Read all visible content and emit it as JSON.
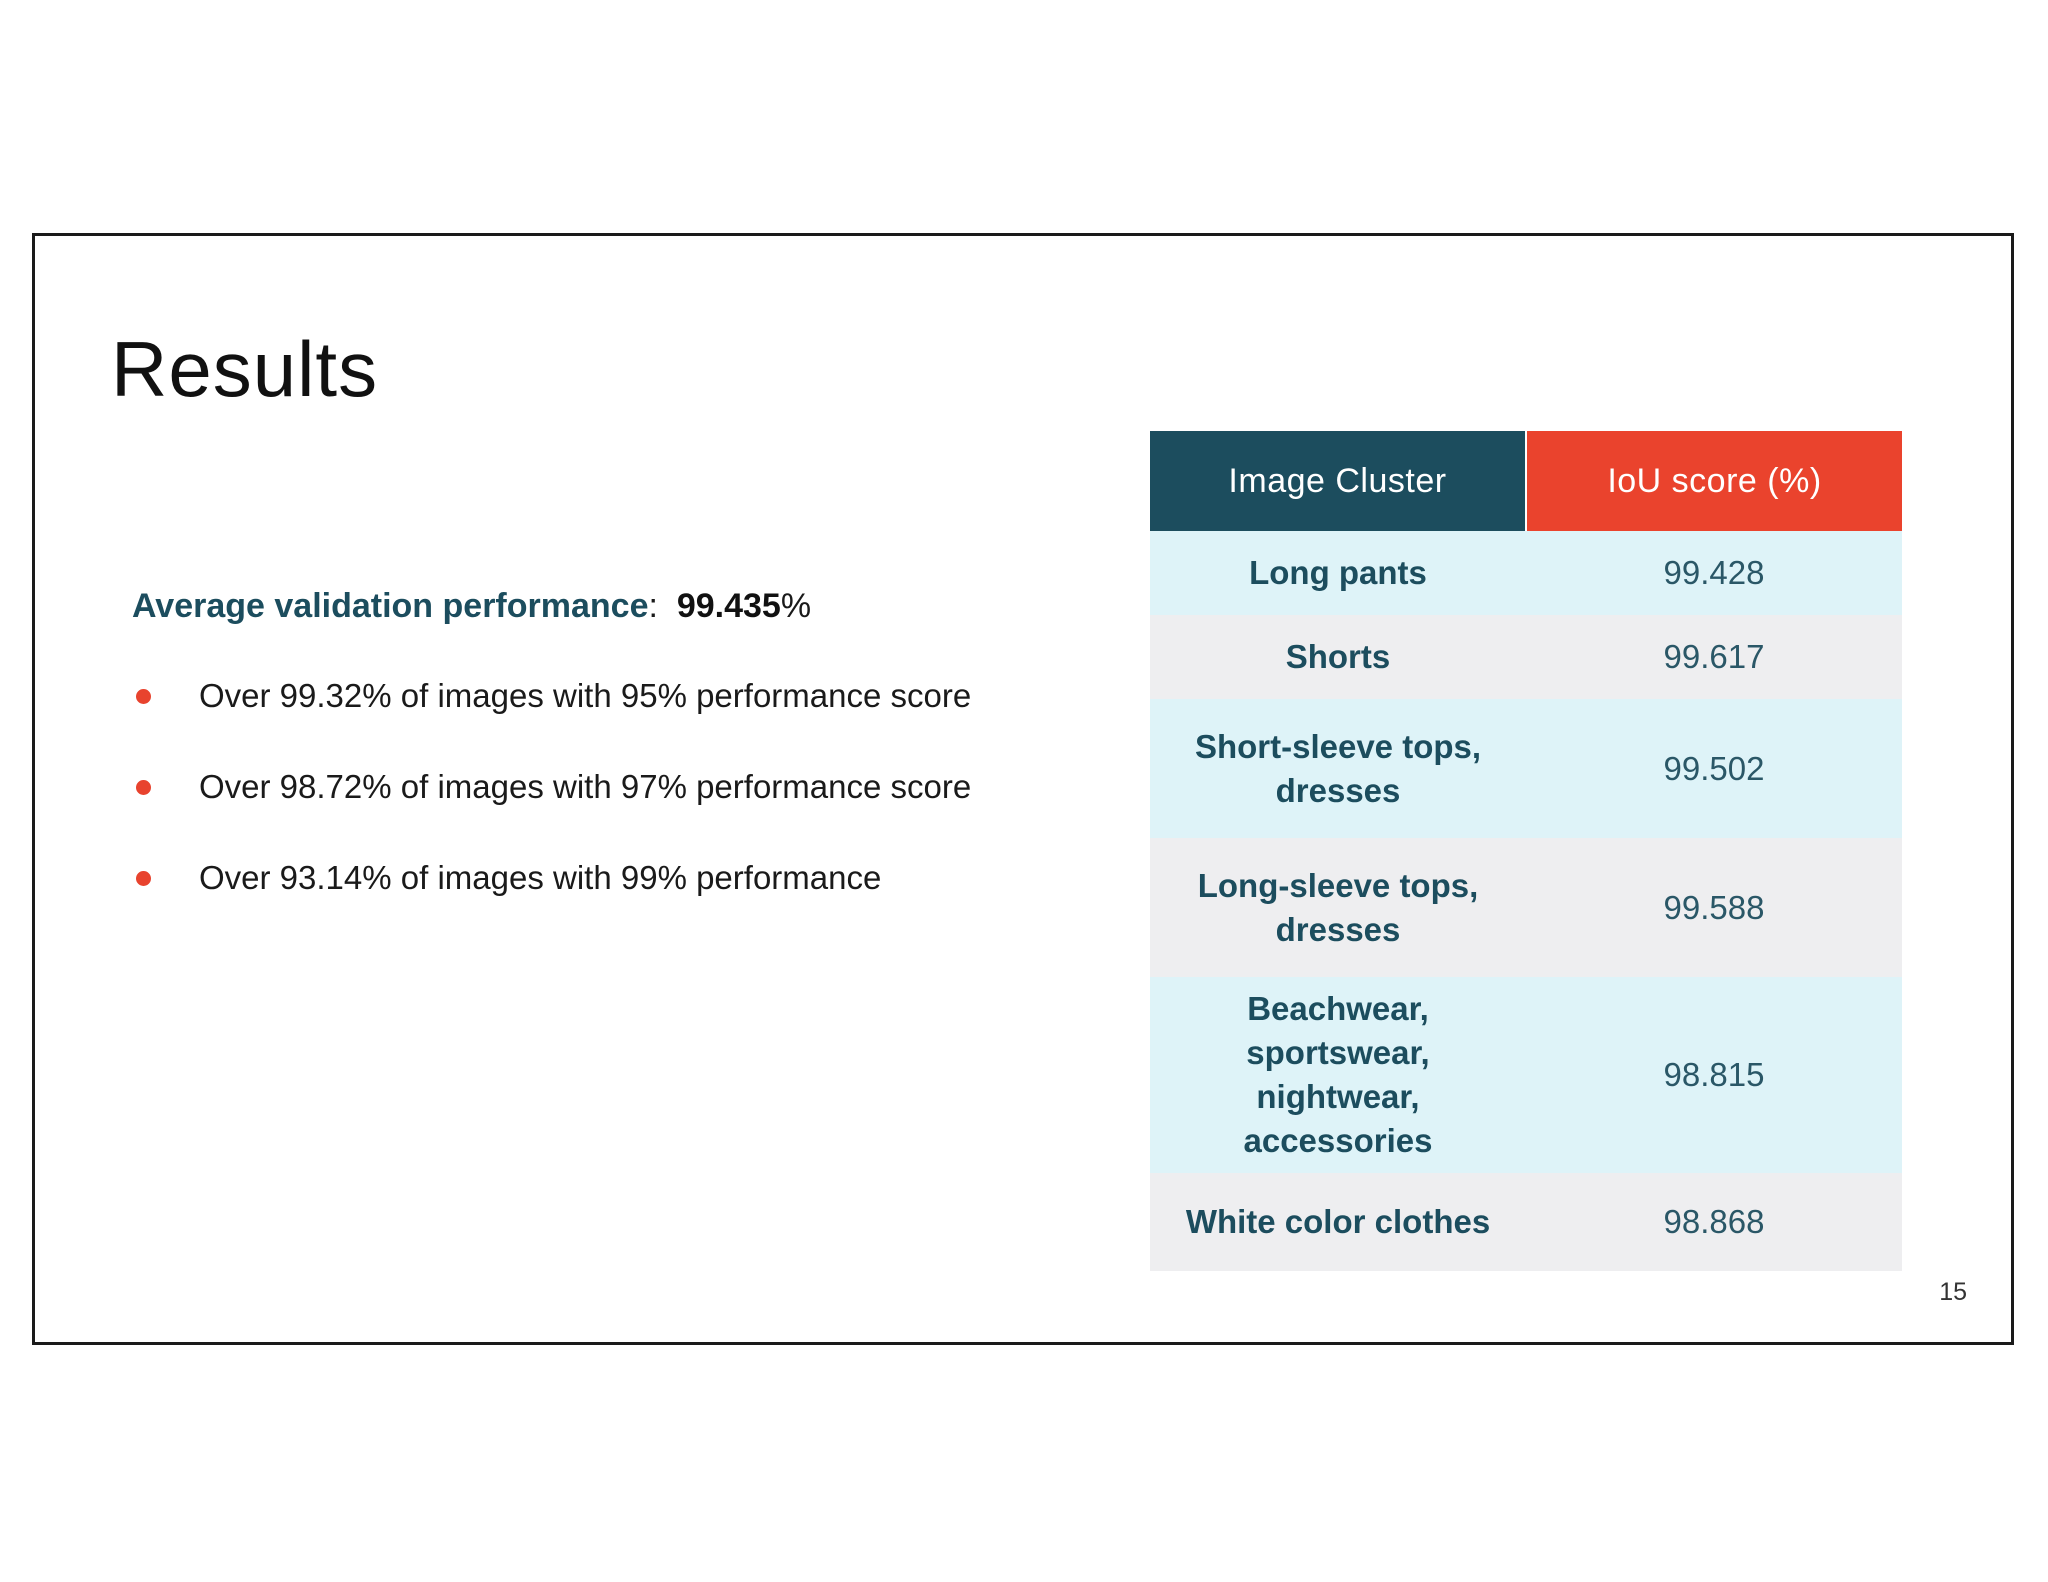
{
  "slide": {
    "title": "Results",
    "page_number": "15"
  },
  "summary": {
    "label": "Average validation performance",
    "separator": ":",
    "value": "99.435",
    "unit": "%"
  },
  "bullets": [
    "Over 99.32% of images with 95% performance score",
    "Over 98.72% of images with 97% performance score",
    "Over 93.14% of images with 99% performance"
  ],
  "table": {
    "headers": [
      "Image Cluster",
      "IoU score (%)"
    ],
    "rows": [
      {
        "cluster": "Long pants",
        "score": "99.428"
      },
      {
        "cluster": "Shorts",
        "score": "99.617"
      },
      {
        "cluster": "Short-sleeve tops, dresses",
        "score": "99.502"
      },
      {
        "cluster": "Long-sleeve tops, dresses",
        "score": "99.588"
      },
      {
        "cluster": "Beachwear, sportswear, nightwear, accessories",
        "score": "98.815"
      },
      {
        "cluster": "White color clothes",
        "score": "98.868"
      }
    ]
  },
  "colors": {
    "header_cluster_bg": "#1c4d5e",
    "header_score_bg": "#ea432d",
    "bullet": "#e8432e",
    "row_odd_bg": "#def3f8",
    "row_even_bg": "#eeeef0",
    "accent_text": "#1c4d5e"
  }
}
